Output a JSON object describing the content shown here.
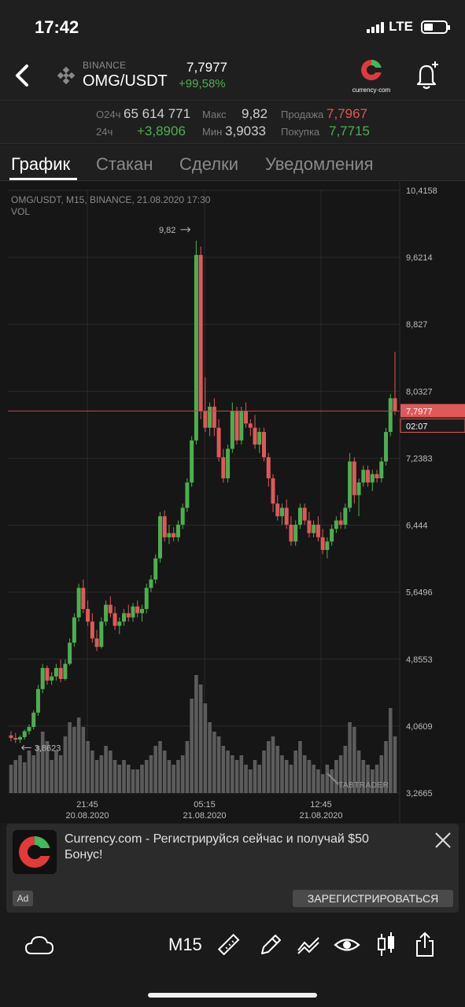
{
  "status": {
    "time": "17:42",
    "network": "LTE"
  },
  "header": {
    "exchange": "BINANCE",
    "pair": "OMG/USDT",
    "price": "7,7977",
    "change": "+99,58%",
    "brand": "currency·com"
  },
  "stats": {
    "vol_label": "O24ч",
    "vol_value": "65 614 771",
    "chg_label": "24ч",
    "chg_value": "+3,8906",
    "max_label": "Макс",
    "max_value": "9,82",
    "min_label": "Мин",
    "min_value": "3,9033",
    "sell_label": "Продажа",
    "sell_value": "7,7967",
    "buy_label": "Покупка",
    "buy_value": "7,7715"
  },
  "tabs": [
    "График",
    "Стакан",
    "Сделки",
    "Уведомления"
  ],
  "chart": {
    "header_line": "OMG/USDT, M15, BINANCE, 21.08.2020 17:30",
    "vol_label": "VOL",
    "y_ticks": [
      "10,4158",
      "9,6214",
      "8,827",
      "8,0327",
      "7,2383",
      "6,444",
      "5,6496",
      "4,8553",
      "4,0609",
      "3,2665"
    ],
    "x_ticks": [
      {
        "time": "21:45",
        "date": "20.08.2020"
      },
      {
        "time": "05:15",
        "date": "21.08.2020"
      },
      {
        "time": "12:45",
        "date": "21.08.2020"
      }
    ],
    "current_price": "7,7977",
    "countdown": "02:07",
    "high_label": "9,82",
    "low_label": "3,8623",
    "watermark": "TABTRADER",
    "colors": {
      "up": "#4caf50",
      "down": "#e05858",
      "price_line": "#c04848",
      "grid": "#2a2a2a"
    }
  },
  "chart_data": {
    "type": "candlestick",
    "series_name": "OMG/USDT M15",
    "y_range": [
      3.2665,
      10.4158
    ],
    "x_ticks": [
      "21:45",
      "05:15",
      "12:45"
    ],
    "ohlc": [
      [
        3.95,
        4.0,
        3.88,
        3.92
      ],
      [
        3.92,
        3.98,
        3.86,
        3.9
      ],
      [
        3.9,
        3.95,
        3.86,
        3.93
      ],
      [
        3.93,
        4.02,
        3.9,
        4.0
      ],
      [
        4.0,
        4.08,
        3.96,
        4.05
      ],
      [
        4.05,
        4.25,
        4.02,
        4.22
      ],
      [
        4.22,
        4.55,
        4.18,
        4.5
      ],
      [
        4.5,
        4.8,
        4.45,
        4.75
      ],
      [
        4.75,
        4.78,
        4.55,
        4.6
      ],
      [
        4.6,
        4.7,
        4.55,
        4.65
      ],
      [
        4.65,
        4.8,
        4.6,
        4.75
      ],
      [
        4.75,
        4.85,
        4.58,
        4.62
      ],
      [
        4.62,
        4.85,
        4.6,
        4.8
      ],
      [
        4.8,
        5.1,
        4.78,
        5.05
      ],
      [
        5.05,
        5.4,
        5.0,
        5.35
      ],
      [
        5.35,
        5.75,
        5.3,
        5.7
      ],
      [
        5.7,
        5.8,
        5.4,
        5.45
      ],
      [
        5.45,
        5.55,
        5.25,
        5.3
      ],
      [
        5.3,
        5.4,
        5.05,
        5.1
      ],
      [
        5.1,
        5.2,
        4.95,
        5.0
      ],
      [
        5.0,
        5.35,
        4.98,
        5.3
      ],
      [
        5.3,
        5.55,
        5.25,
        5.5
      ],
      [
        5.5,
        5.6,
        5.35,
        5.4
      ],
      [
        5.4,
        5.48,
        5.2,
        5.25
      ],
      [
        5.25,
        5.35,
        5.15,
        5.3
      ],
      [
        5.3,
        5.45,
        5.25,
        5.4
      ],
      [
        5.4,
        5.5,
        5.3,
        5.35
      ],
      [
        5.35,
        5.52,
        5.3,
        5.48
      ],
      [
        5.48,
        5.55,
        5.35,
        5.4
      ],
      [
        5.4,
        5.5,
        5.3,
        5.45
      ],
      [
        5.45,
        5.75,
        5.4,
        5.7
      ],
      [
        5.7,
        5.85,
        5.65,
        5.8
      ],
      [
        5.8,
        6.1,
        5.75,
        6.05
      ],
      [
        6.05,
        6.6,
        6.0,
        6.55
      ],
      [
        6.55,
        6.62,
        6.25,
        6.3
      ],
      [
        6.3,
        6.45,
        6.22,
        6.35
      ],
      [
        6.35,
        6.42,
        6.25,
        6.3
      ],
      [
        6.3,
        6.5,
        6.25,
        6.45
      ],
      [
        6.45,
        6.7,
        6.4,
        6.65
      ],
      [
        6.65,
        7.0,
        6.6,
        6.95
      ],
      [
        6.95,
        7.5,
        6.9,
        7.45
      ],
      [
        7.45,
        9.82,
        7.4,
        9.65
      ],
      [
        9.65,
        9.75,
        7.7,
        7.8
      ],
      [
        7.8,
        8.2,
        7.55,
        7.6
      ],
      [
        7.6,
        7.9,
        7.5,
        7.85
      ],
      [
        7.85,
        7.95,
        7.5,
        7.6
      ],
      [
        7.6,
        7.7,
        7.2,
        7.25
      ],
      [
        7.25,
        7.35,
        6.95,
        7.0
      ],
      [
        7.0,
        7.4,
        6.95,
        7.35
      ],
      [
        7.35,
        7.9,
        7.3,
        7.8
      ],
      [
        7.8,
        7.85,
        7.4,
        7.45
      ],
      [
        7.45,
        7.85,
        7.4,
        7.8
      ],
      [
        7.8,
        7.9,
        7.6,
        7.65
      ],
      [
        7.65,
        7.7,
        7.5,
        7.6
      ],
      [
        7.6,
        7.75,
        7.35,
        7.4
      ],
      [
        7.4,
        7.6,
        7.3,
        7.55
      ],
      [
        7.55,
        7.6,
        7.2,
        7.25
      ],
      [
        7.25,
        7.3,
        6.9,
        7.0
      ],
      [
        7.0,
        7.05,
        6.6,
        6.7
      ],
      [
        6.7,
        6.8,
        6.5,
        6.55
      ],
      [
        6.55,
        6.7,
        6.45,
        6.65
      ],
      [
        6.65,
        6.75,
        6.4,
        6.45
      ],
      [
        6.45,
        6.55,
        6.2,
        6.25
      ],
      [
        6.25,
        6.5,
        6.2,
        6.45
      ],
      [
        6.45,
        6.7,
        6.4,
        6.65
      ],
      [
        6.65,
        6.7,
        6.45,
        6.5
      ],
      [
        6.5,
        6.6,
        6.3,
        6.35
      ],
      [
        6.35,
        6.5,
        6.3,
        6.45
      ],
      [
        6.45,
        6.55,
        6.25,
        6.3
      ],
      [
        6.3,
        6.4,
        6.1,
        6.15
      ],
      [
        6.15,
        6.3,
        6.05,
        6.25
      ],
      [
        6.25,
        6.45,
        6.2,
        6.4
      ],
      [
        6.4,
        6.55,
        6.35,
        6.5
      ],
      [
        6.5,
        6.6,
        6.4,
        6.45
      ],
      [
        6.45,
        6.7,
        6.4,
        6.65
      ],
      [
        6.65,
        7.3,
        6.6,
        7.2
      ],
      [
        7.2,
        7.25,
        6.7,
        6.8
      ],
      [
        6.8,
        7.0,
        6.55,
        6.95
      ],
      [
        6.95,
        7.15,
        6.9,
        7.1
      ],
      [
        7.1,
        7.15,
        6.9,
        6.95
      ],
      [
        6.95,
        7.1,
        6.85,
        7.05
      ],
      [
        7.05,
        7.1,
        6.95,
        7.0
      ],
      [
        7.0,
        7.25,
        6.95,
        7.2
      ],
      [
        7.2,
        7.6,
        7.15,
        7.55
      ],
      [
        7.55,
        8.0,
        7.5,
        7.95
      ],
      [
        7.95,
        8.5,
        7.75,
        7.7977
      ]
    ],
    "volume": [
      12,
      14,
      16,
      13,
      18,
      16,
      20,
      26,
      22,
      14,
      18,
      16,
      24,
      30,
      28,
      32,
      28,
      22,
      18,
      14,
      16,
      20,
      18,
      14,
      12,
      14,
      12,
      10,
      10,
      12,
      14,
      16,
      20,
      22,
      18,
      14,
      12,
      14,
      16,
      22,
      40,
      50,
      46,
      38,
      30,
      26,
      24,
      20,
      18,
      16,
      14,
      16,
      12,
      10,
      14,
      12,
      18,
      22,
      24,
      20,
      16,
      14,
      12,
      18,
      22,
      16,
      14,
      12,
      10,
      8,
      12,
      10,
      14,
      16,
      20,
      30,
      28,
      18,
      14,
      12,
      10,
      12,
      16,
      22,
      36,
      24
    ]
  },
  "ad": {
    "text": "Currency.com - Регистрируйся сейчас и получай $50 Бонус!",
    "badge": "Ad",
    "cta": "ЗАРЕГИСТРИРОВАТЬСЯ"
  },
  "toolbar": {
    "timeframe": "M15"
  }
}
